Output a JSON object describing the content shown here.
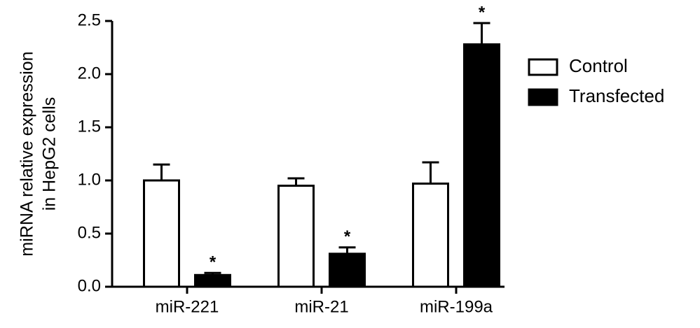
{
  "chart_data": {
    "type": "bar",
    "ylabel": [
      "miRNA relative expression",
      "in HepG2 cells"
    ],
    "categories": [
      "miR-221",
      "miR-21",
      "miR-199a"
    ],
    "series": [
      {
        "name": "Control",
        "color": "#ffffff",
        "values": [
          1.0,
          0.95,
          0.97
        ],
        "errors": [
          0.15,
          0.07,
          0.2
        ]
      },
      {
        "name": "Transfected",
        "color": "#000000",
        "values": [
          0.11,
          0.31,
          2.28
        ],
        "errors": [
          0.02,
          0.06,
          0.2
        ],
        "markers": [
          "*",
          "*",
          "*"
        ]
      }
    ],
    "ylim": [
      0,
      2.5
    ],
    "yticks": [
      {
        "value": 0,
        "label": "0.0"
      },
      0.5,
      {
        "value": 1,
        "label": "1.0"
      },
      1.5,
      {
        "value": 2,
        "label": "2.0"
      },
      2.5
    ]
  }
}
